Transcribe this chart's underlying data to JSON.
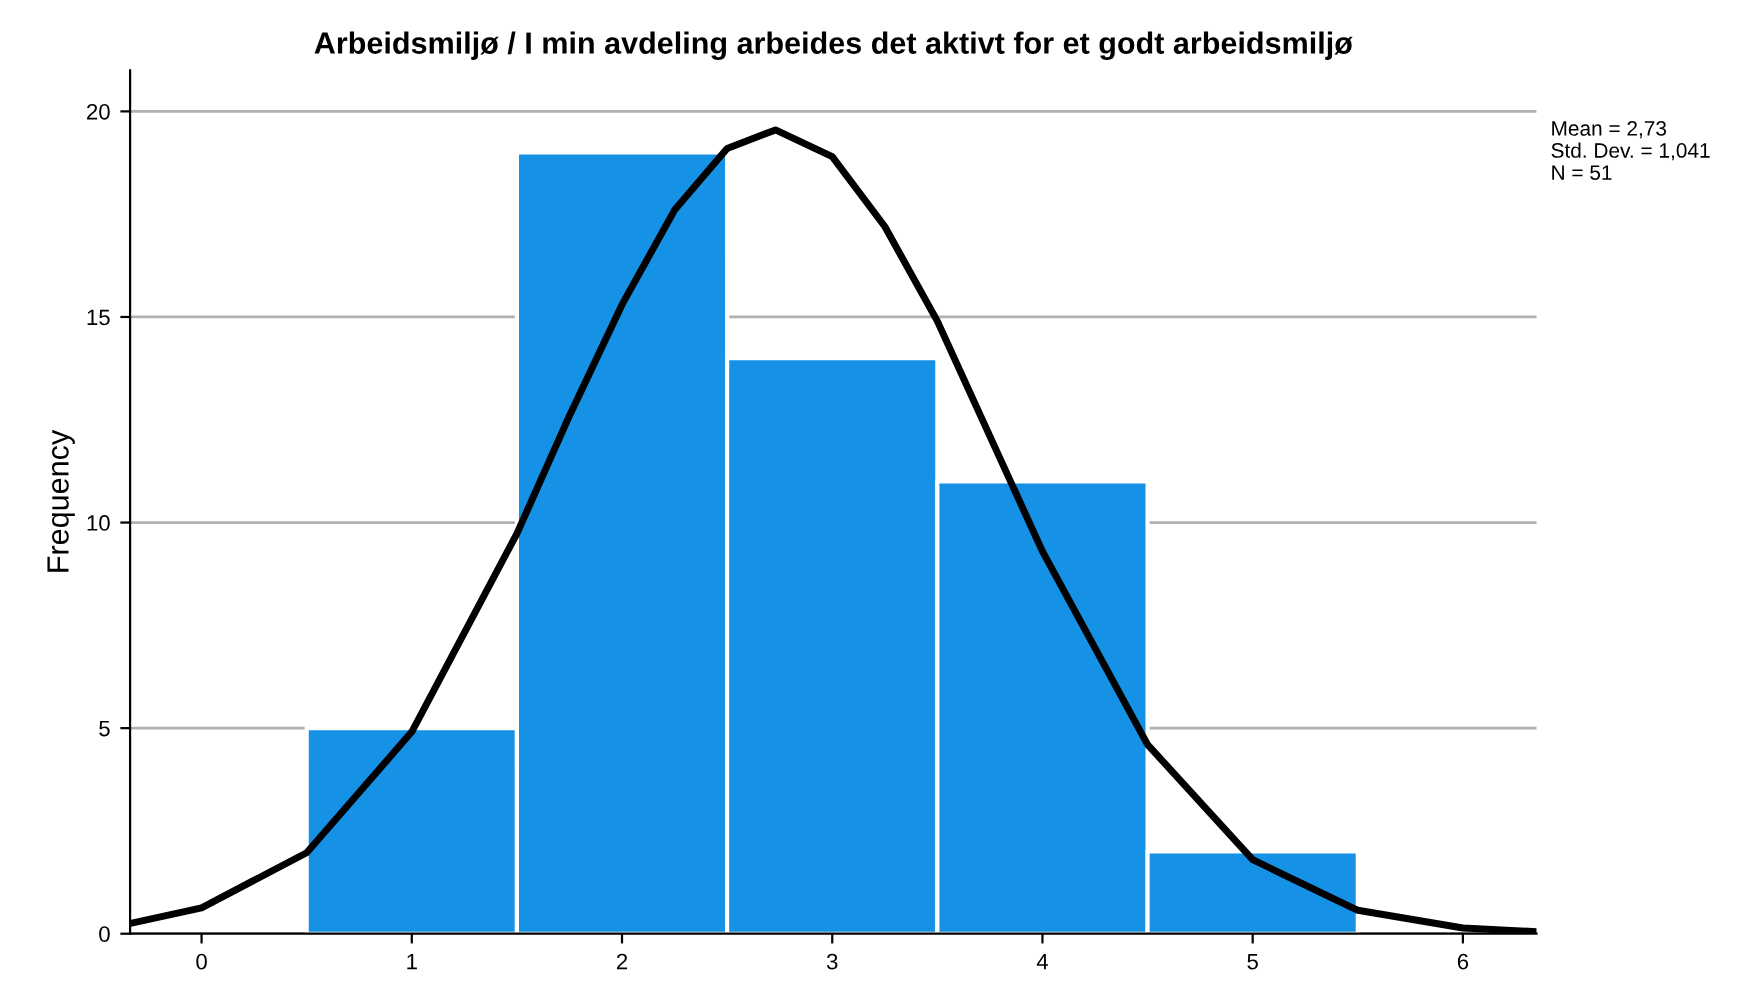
{
  "chart_data": {
    "type": "histogram",
    "title": "Arbeidsmiljø / I min avdeling arbeides det aktivt for et godt arbeidsmiljø",
    "ylabel": "Frequency",
    "bins": [
      0.5,
      1.5,
      2.5,
      3.5,
      4.5,
      5.5
    ],
    "values": [
      5,
      19,
      14,
      11,
      2
    ],
    "color": "#1591e6",
    "series": [
      {
        "type": "line",
        "color": "#000000",
        "x": [
          -0.34,
          0,
          0.5,
          1,
          1.5,
          1.75,
          2,
          2.25,
          2.5,
          2.73,
          3,
          3.25,
          3.5,
          4,
          4.5,
          5,
          5.5,
          6,
          6.35
        ],
        "values": [
          0.25,
          0.63,
          1.97,
          4.91,
          9.73,
          12.6,
          15.3,
          17.6,
          19.1,
          19.55,
          18.9,
          17.2,
          14.9,
          9.3,
          4.6,
          1.8,
          0.57,
          0.14,
          0.05
        ]
      }
    ],
    "xlim": [
      -0.34,
      6.35
    ],
    "xticks": [
      0,
      1,
      2,
      3,
      4,
      5,
      6
    ],
    "ylim": [
      0,
      21
    ],
    "yticks": [
      0,
      5,
      10,
      15,
      20
    ],
    "grid": "y",
    "legend": false,
    "annotations": [
      "Mean = 2,73",
      "Std. Dev. = 1,041",
      "N = 51"
    ]
  }
}
